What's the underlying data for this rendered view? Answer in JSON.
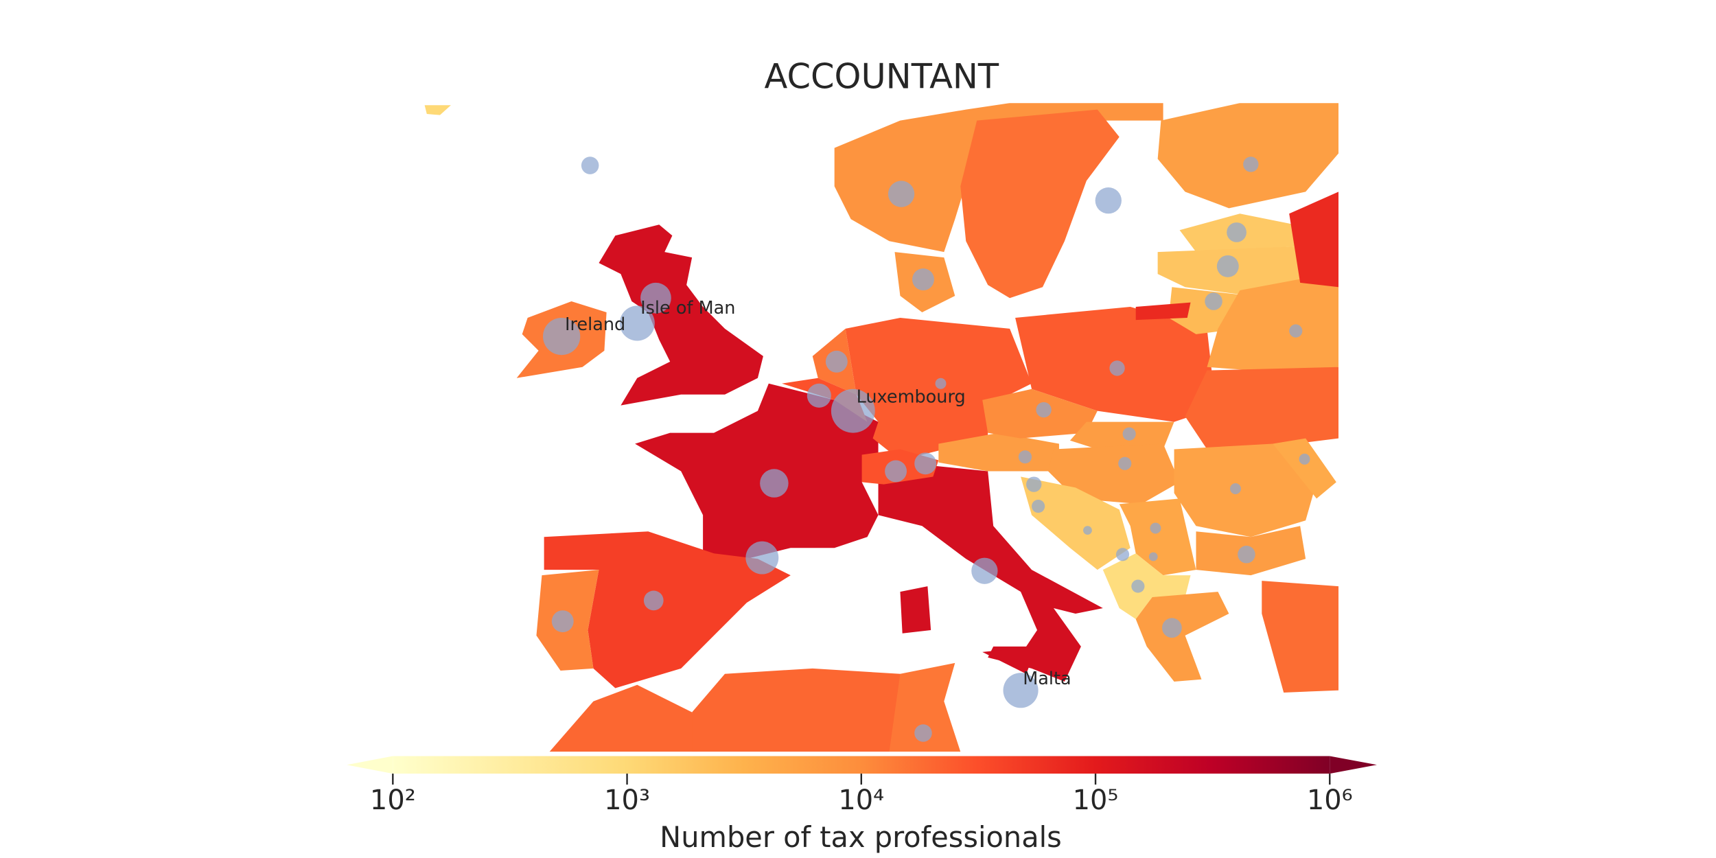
{
  "chart_data": {
    "type": "choropleth",
    "title": "ACCOUNTANT",
    "colorbar_label": "Number of tax professionals",
    "log_scale": true,
    "colormap": [
      "#ffffcc",
      "#ffeda0",
      "#fed976",
      "#feb24c",
      "#fd8d3c",
      "#fc4e2a",
      "#e31a1c",
      "#bd0026",
      "#800026"
    ],
    "clim": [
      100,
      1000000
    ],
    "cticks": [
      {
        "value": 100,
        "label": "10²"
      },
      {
        "value": 1000,
        "label": "10³"
      },
      {
        "value": 10000,
        "label": "10⁴"
      },
      {
        "value": 100000,
        "label": "10⁵"
      },
      {
        "value": 1000000,
        "label": "10⁶"
      }
    ],
    "values": [
      160000,
      14000,
      160000,
      44000,
      12000,
      160000,
      160000,
      160000,
      25000,
      15000,
      30000,
      30000,
      6000,
      25000,
      10000,
      6000,
      6000,
      8000,
      17000,
      5800,
      7000,
      1600,
      1800,
      2500,
      5000,
      70000,
      70000,
      20000,
      5000,
      4000,
      6000,
      1500,
      4500,
      800,
      6000,
      18000,
      20000,
      20000,
      15000,
      1000
    ],
    "annotations": [
      "Ireland",
      "Isle of Man",
      "Luxembourg",
      "Malta"
    ]
  }
}
